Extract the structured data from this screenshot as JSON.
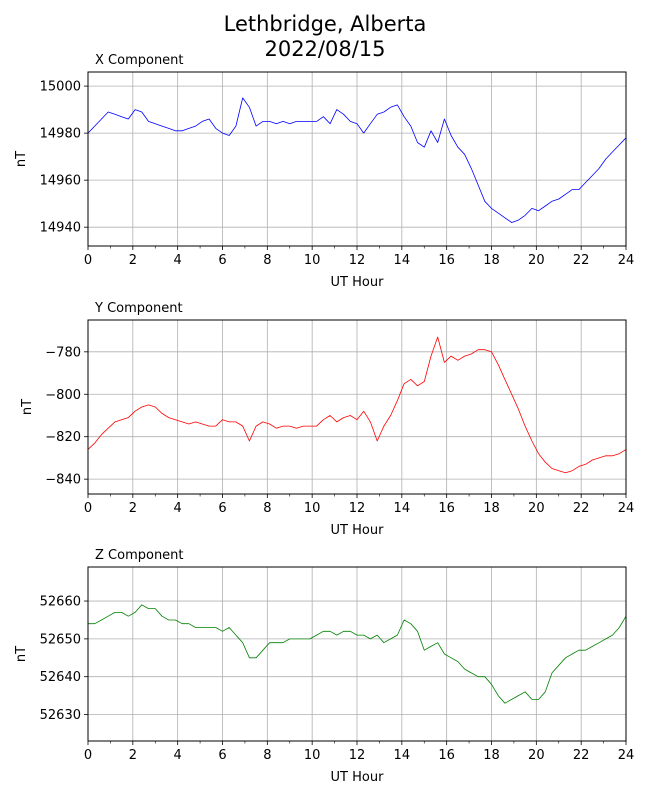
{
  "figure": {
    "title_line1": "Lethbridge, Alberta",
    "title_line2": "2022/08/15"
  },
  "chart_data": [
    {
      "type": "line",
      "title": "X Component",
      "xlabel": "UT Hour",
      "ylabel": "nT",
      "xlim": [
        0,
        24
      ],
      "ylim": [
        14932,
        15006
      ],
      "xticks": [
        0,
        2,
        4,
        6,
        8,
        10,
        12,
        14,
        16,
        18,
        20,
        22,
        24
      ],
      "yticks": [
        14940,
        14960,
        14980,
        15000
      ],
      "grid": true,
      "color": "#0000ff",
      "x": [
        0,
        0.3,
        0.6,
        0.9,
        1.2,
        1.5,
        1.8,
        2.1,
        2.4,
        2.7,
        3.0,
        3.3,
        3.6,
        3.9,
        4.2,
        4.5,
        4.8,
        5.1,
        5.4,
        5.7,
        6.0,
        6.3,
        6.6,
        6.9,
        7.2,
        7.5,
        7.8,
        8.1,
        8.4,
        8.7,
        9.0,
        9.3,
        9.6,
        9.9,
        10.2,
        10.5,
        10.8,
        11.1,
        11.4,
        11.7,
        12.0,
        12.3,
        12.6,
        12.9,
        13.2,
        13.5,
        13.8,
        14.1,
        14.4,
        14.7,
        15.0,
        15.3,
        15.6,
        15.9,
        16.2,
        16.5,
        16.8,
        17.1,
        17.4,
        17.7,
        18.0,
        18.3,
        18.6,
        18.9,
        19.2,
        19.5,
        19.8,
        20.1,
        20.4,
        20.7,
        21.0,
        21.3,
        21.6,
        21.9,
        22.2,
        22.5,
        22.8,
        23.1,
        23.4,
        23.7,
        24.0
      ],
      "values": [
        14980,
        14983,
        14986,
        14989,
        14988,
        14987,
        14986,
        14990,
        14989,
        14985,
        14984,
        14983,
        14982,
        14981,
        14981,
        14982,
        14983,
        14985,
        14986,
        14982,
        14980,
        14979,
        14983,
        14995,
        14991,
        14983,
        14985,
        14985,
        14984,
        14985,
        14984,
        14985,
        14985,
        14985,
        14985,
        14987,
        14984,
        14990,
        14988,
        14985,
        14984,
        14980,
        14984,
        14988,
        14989,
        14991,
        14992,
        14987,
        14983,
        14976,
        14974,
        14981,
        14976,
        14986,
        14979,
        14974,
        14971,
        14965,
        14958,
        14951,
        14948,
        14946,
        14944,
        14942,
        14943,
        14945,
        14948,
        14947,
        14949,
        14951,
        14952,
        14954,
        14956,
        14956,
        14959,
        14962,
        14965,
        14969,
        14972,
        14975,
        14978
      ]
    },
    {
      "type": "line",
      "title": "Y Component",
      "xlabel": "UT Hour",
      "ylabel": "nT",
      "xlim": [
        0,
        24
      ],
      "ylim": [
        -847,
        -765
      ],
      "xticks": [
        0,
        2,
        4,
        6,
        8,
        10,
        12,
        14,
        16,
        18,
        20,
        22,
        24
      ],
      "yticks": [
        -840,
        -820,
        -800,
        -780
      ],
      "grid": true,
      "color": "#ff0000",
      "x": [
        0,
        0.3,
        0.6,
        0.9,
        1.2,
        1.5,
        1.8,
        2.1,
        2.4,
        2.7,
        3.0,
        3.3,
        3.6,
        3.9,
        4.2,
        4.5,
        4.8,
        5.1,
        5.4,
        5.7,
        6.0,
        6.3,
        6.6,
        6.9,
        7.2,
        7.5,
        7.8,
        8.1,
        8.4,
        8.7,
        9.0,
        9.3,
        9.6,
        9.9,
        10.2,
        10.5,
        10.8,
        11.1,
        11.4,
        11.7,
        12.0,
        12.3,
        12.6,
        12.9,
        13.2,
        13.5,
        13.8,
        14.1,
        14.4,
        14.7,
        15.0,
        15.3,
        15.6,
        15.9,
        16.2,
        16.5,
        16.8,
        17.1,
        17.4,
        17.7,
        18.0,
        18.3,
        18.6,
        18.9,
        19.2,
        19.5,
        19.8,
        20.1,
        20.4,
        20.7,
        21.0,
        21.3,
        21.6,
        21.9,
        22.2,
        22.5,
        22.8,
        23.1,
        23.4,
        23.7,
        24.0
      ],
      "values": [
        -826,
        -823,
        -819,
        -816,
        -813,
        -812,
        -811,
        -808,
        -806,
        -805,
        -806,
        -809,
        -811,
        -812,
        -813,
        -814,
        -813,
        -814,
        -815,
        -815,
        -812,
        -813,
        -813,
        -815,
        -822,
        -815,
        -813,
        -814,
        -816,
        -815,
        -815,
        -816,
        -815,
        -815,
        -815,
        -812,
        -810,
        -813,
        -811,
        -810,
        -812,
        -808,
        -813,
        -822,
        -815,
        -810,
        -803,
        -795,
        -793,
        -796,
        -794,
        -782,
        -773,
        -785,
        -782,
        -784,
        -782,
        -781,
        -779,
        -779,
        -780,
        -786,
        -793,
        -800,
        -807,
        -815,
        -822,
        -828,
        -832,
        -835,
        -836,
        -837,
        -836,
        -834,
        -833,
        -831,
        -830,
        -829,
        -829,
        -828,
        -826
      ]
    },
    {
      "type": "line",
      "title": "Z Component",
      "xlabel": "UT Hour",
      "ylabel": "nT",
      "xlim": [
        0,
        24
      ],
      "ylim": [
        52623,
        52669
      ],
      "xticks": [
        0,
        2,
        4,
        6,
        8,
        10,
        12,
        14,
        16,
        18,
        20,
        22,
        24
      ],
      "yticks": [
        52630,
        52640,
        52650,
        52660
      ],
      "grid": true,
      "color": "#008000",
      "x": [
        0,
        0.3,
        0.6,
        0.9,
        1.2,
        1.5,
        1.8,
        2.1,
        2.4,
        2.7,
        3.0,
        3.3,
        3.6,
        3.9,
        4.2,
        4.5,
        4.8,
        5.1,
        5.4,
        5.7,
        6.0,
        6.3,
        6.6,
        6.9,
        7.2,
        7.5,
        7.8,
        8.1,
        8.4,
        8.7,
        9.0,
        9.3,
        9.6,
        9.9,
        10.2,
        10.5,
        10.8,
        11.1,
        11.4,
        11.7,
        12.0,
        12.3,
        12.6,
        12.9,
        13.2,
        13.5,
        13.8,
        14.1,
        14.4,
        14.7,
        15.0,
        15.3,
        15.6,
        15.9,
        16.2,
        16.5,
        16.8,
        17.1,
        17.4,
        17.7,
        18.0,
        18.3,
        18.6,
        18.9,
        19.2,
        19.5,
        19.8,
        20.1,
        20.4,
        20.7,
        21.0,
        21.3,
        21.6,
        21.9,
        22.2,
        22.5,
        22.8,
        23.1,
        23.4,
        23.7,
        24.0
      ],
      "values": [
        52654,
        52654,
        52655,
        52656,
        52657,
        52657,
        52656,
        52657,
        52659,
        52658,
        52658,
        52656,
        52655,
        52655,
        52654,
        52654,
        52653,
        52653,
        52653,
        52653,
        52652,
        52653,
        52651,
        52649,
        52645,
        52645,
        52647,
        52649,
        52649,
        52649,
        52650,
        52650,
        52650,
        52650,
        52651,
        52652,
        52652,
        52651,
        52652,
        52652,
        52651,
        52651,
        52650,
        52651,
        52649,
        52650,
        52651,
        52655,
        52654,
        52652,
        52647,
        52648,
        52649,
        52646,
        52645,
        52644,
        52642,
        52641,
        52640,
        52640,
        52638,
        52635,
        52633,
        52634,
        52635,
        52636,
        52634,
        52634,
        52636,
        52641,
        52643,
        52645,
        52646,
        52647,
        52647,
        52648,
        52649,
        52650,
        52651,
        52653,
        52656
      ]
    }
  ]
}
